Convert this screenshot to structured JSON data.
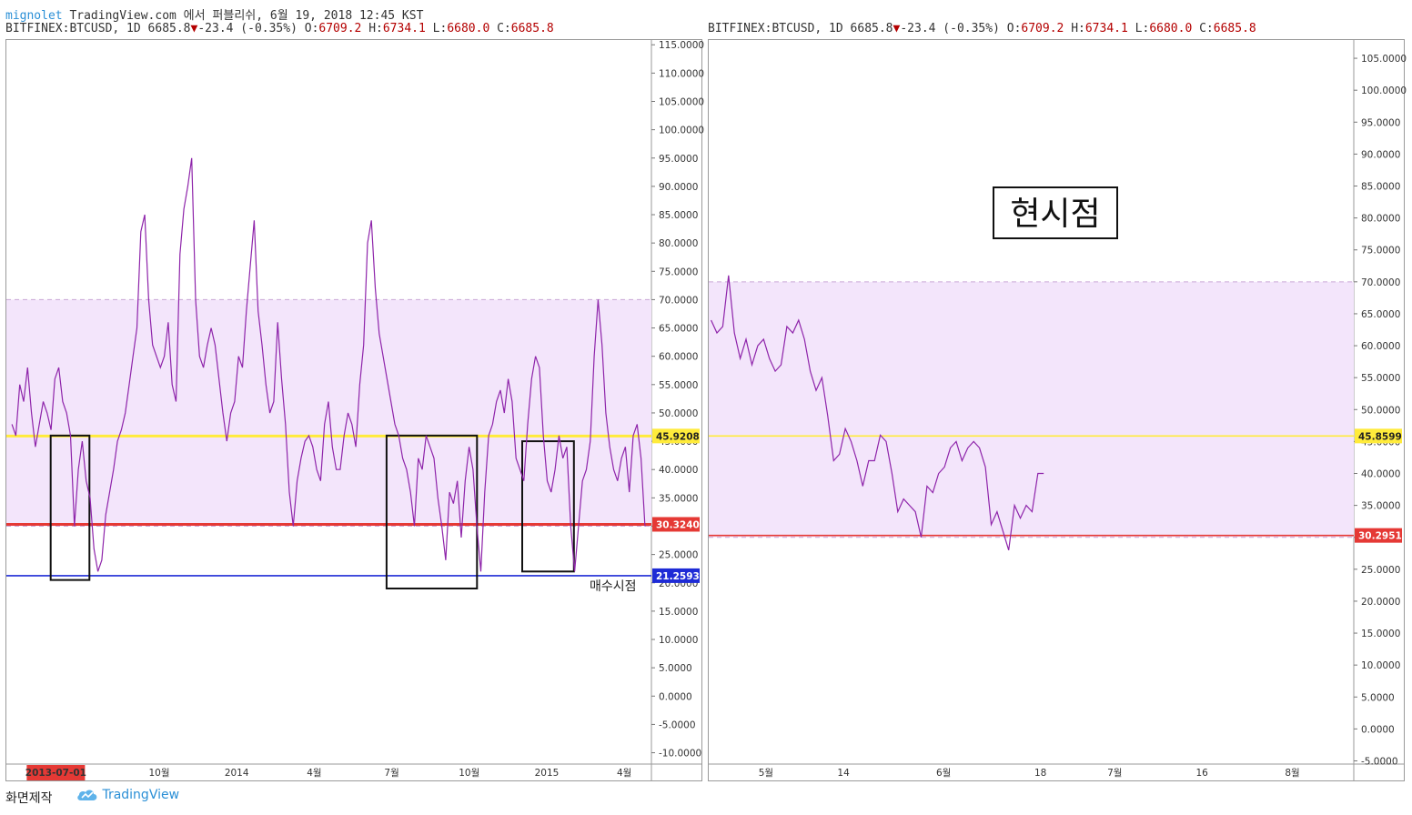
{
  "publish_line": {
    "user": "mignolet",
    "rest": " TradingView.com 에서 퍼블리쉬, 6월 19, 2018 12:45 KST"
  },
  "headers": [
    {
      "symbol": "BITFINEX:BTCUSD, 1D",
      "last": "6685.8",
      "arrow": "▼",
      "change": "-23.4 (-0.35%)",
      "o_label": "O:",
      "o": "6709.2",
      "h_label": "H:",
      "h": "6734.1",
      "l_label": "L:",
      "l": "6680.0",
      "c_label": "C:",
      "c": "6685.8"
    },
    {
      "symbol": "BITFINEX:BTCUSD, 1D",
      "last": "6685.8",
      "arrow": "▼",
      "change": "-23.4 (-0.35%)",
      "o_label": "O:",
      "o": "6709.2",
      "h_label": "H:",
      "h": "6734.1",
      "l_label": "L:",
      "l": "6680.0",
      "c_label": "C:",
      "c": "6685.8"
    }
  ],
  "footer": {
    "made_with": "화면제작",
    "brand": "TradingView"
  },
  "colors": {
    "series": "#8e24aa",
    "band": "#f3e5fb",
    "yellow": "#ffeb3b",
    "red": "#e53935",
    "blue": "#1e2bd6",
    "badge_red_date": "#e53935"
  },
  "chart_data": [
    {
      "type": "line",
      "title": "",
      "ylim": [
        -12,
        116
      ],
      "y_ticks": [
        "115.0000",
        "110.0000",
        "105.0000",
        "100.0000",
        "95.0000",
        "90.0000",
        "85.0000",
        "80.0000",
        "75.0000",
        "70.0000",
        "65.0000",
        "60.0000",
        "55.0000",
        "50.0000",
        "45.0000",
        "40.0000",
        "35.0000",
        "30.0000",
        "25.0000",
        "20.0000",
        "15.0000",
        "10.0000",
        "5.0000",
        "0.0000",
        "-5.0000",
        "-10.0000"
      ],
      "x_ticks": [
        "2013-07-01",
        "10월",
        "2014",
        "4월",
        "7월",
        "10월",
        "2015",
        "4월"
      ],
      "band": [
        30,
        70
      ],
      "levels": [
        {
          "name": "yellow",
          "value": 45.9208,
          "label": "45.9208"
        },
        {
          "name": "red",
          "value": 30.324,
          "label": "30.3240"
        },
        {
          "name": "blue",
          "value": 21.2593,
          "label": "21.2593"
        }
      ],
      "annotation": "매수시점",
      "boxes": [
        {
          "x0": 0.07,
          "x1": 0.13,
          "y_top": 46,
          "y_bottom": 20.5
        },
        {
          "x0": 0.59,
          "x1": 0.73,
          "y_top": 46,
          "y_bottom": 19
        },
        {
          "x0": 0.8,
          "x1": 0.88,
          "y_top": 45,
          "y_bottom": 22
        }
      ],
      "series": [
        {
          "values": [
            48,
            46,
            55,
            52,
            58,
            50,
            44,
            48,
            52,
            50,
            47,
            56,
            58,
            52,
            50,
            46,
            30,
            40,
            45,
            38,
            35,
            26,
            22,
            24,
            32,
            36,
            40,
            45,
            47,
            50,
            55,
            60,
            65,
            82,
            85,
            70,
            62,
            60,
            58,
            60,
            66,
            55,
            52,
            78,
            86,
            90,
            95,
            70,
            60,
            58,
            62,
            65,
            62,
            56,
            50,
            45,
            50,
            52,
            60,
            58,
            68,
            76,
            84,
            68,
            62,
            55,
            50,
            52,
            66,
            56,
            48,
            36,
            30,
            38,
            42,
            45,
            46,
            44,
            40,
            38,
            48,
            52,
            44,
            40,
            40,
            46,
            50,
            48,
            44,
            55,
            62,
            80,
            84,
            72,
            64,
            60,
            56,
            52,
            48,
            46,
            42,
            40,
            36,
            30,
            42,
            40,
            46,
            44,
            42,
            35,
            30,
            24,
            36,
            34,
            38,
            28,
            38,
            44,
            40,
            30,
            22,
            36,
            46,
            48,
            52,
            54,
            50,
            56,
            52,
            42,
            40,
            38,
            48,
            56,
            60,
            58,
            46,
            38,
            36,
            40,
            46,
            42,
            44,
            30,
            22,
            30,
            38,
            40,
            45,
            60,
            70,
            62,
            50,
            44,
            40,
            38,
            42,
            44,
            36,
            46,
            48,
            42,
            30
          ]
        }
      ]
    },
    {
      "type": "line",
      "title": "",
      "ylim": [
        -5.5,
        108
      ],
      "y_ticks": [
        "105.0000",
        "100.0000",
        "95.0000",
        "90.0000",
        "85.0000",
        "80.0000",
        "75.0000",
        "70.0000",
        "65.0000",
        "60.0000",
        "55.0000",
        "50.0000",
        "45.0000",
        "40.0000",
        "35.0000",
        "30.0000",
        "25.0000",
        "20.0000",
        "15.0000",
        "10.0000",
        "5.0000",
        "0.0000",
        "-5.0000"
      ],
      "x_ticks": [
        "5월",
        "14",
        "6월",
        "18",
        "7월",
        "16",
        "8월"
      ],
      "band": [
        30,
        70
      ],
      "levels": [
        {
          "name": "yellow",
          "value": 45.8599,
          "label": "45.8599"
        },
        {
          "name": "red",
          "value": 30.2951,
          "label": "30.2951"
        }
      ],
      "annotation": "현시점",
      "series": [
        {
          "values": [
            64,
            62,
            63,
            71,
            62,
            58,
            61,
            57,
            60,
            61,
            58,
            56,
            57,
            63,
            62,
            64,
            61,
            56,
            53,
            55,
            49,
            42,
            43,
            47,
            45,
            42,
            38,
            42,
            42,
            46,
            45,
            40,
            34,
            36,
            35,
            34,
            30,
            38,
            37,
            40,
            41,
            44,
            45,
            42,
            44,
            45,
            44,
            41,
            32,
            34,
            31,
            28,
            35,
            33,
            35,
            34,
            40,
            40
          ]
        }
      ]
    }
  ]
}
